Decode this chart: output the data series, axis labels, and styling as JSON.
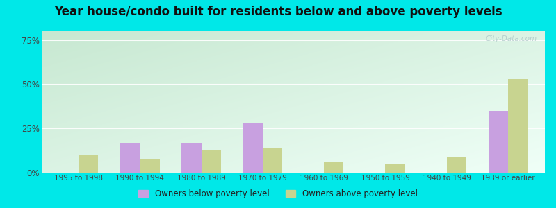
{
  "categories": [
    "1995 to 1998",
    "1990 to 1994",
    "1980 to 1989",
    "1970 to 1979",
    "1960 to 1969",
    "1950 to 1959",
    "1940 to 1949",
    "1939 or earlier"
  ],
  "below_poverty": [
    0,
    17,
    17,
    28,
    0,
    0,
    0,
    35
  ],
  "above_poverty": [
    10,
    8,
    13,
    14,
    6,
    5,
    9,
    53
  ],
  "below_color": "#c8a0e0",
  "above_color": "#c8d490",
  "title": "Year house/condo built for residents below and above poverty levels",
  "title_fontsize": 12,
  "ylabel_ticks": [
    "0%",
    "25%",
    "50%",
    "75%"
  ],
  "ytick_vals": [
    0,
    25,
    50,
    75
  ],
  "ylim": [
    0,
    80
  ],
  "legend_below": "Owners below poverty level",
  "legend_above": "Owners above poverty level",
  "bar_width": 0.32,
  "outer_bg": "#00e8e8",
  "watermark": "City-Data.com",
  "bg_left_color": "#c8e8d0",
  "bg_right_color": "#e8f8f0",
  "bg_top_color": "#e0f0e8",
  "bg_bottom_color": "#f4fef8"
}
